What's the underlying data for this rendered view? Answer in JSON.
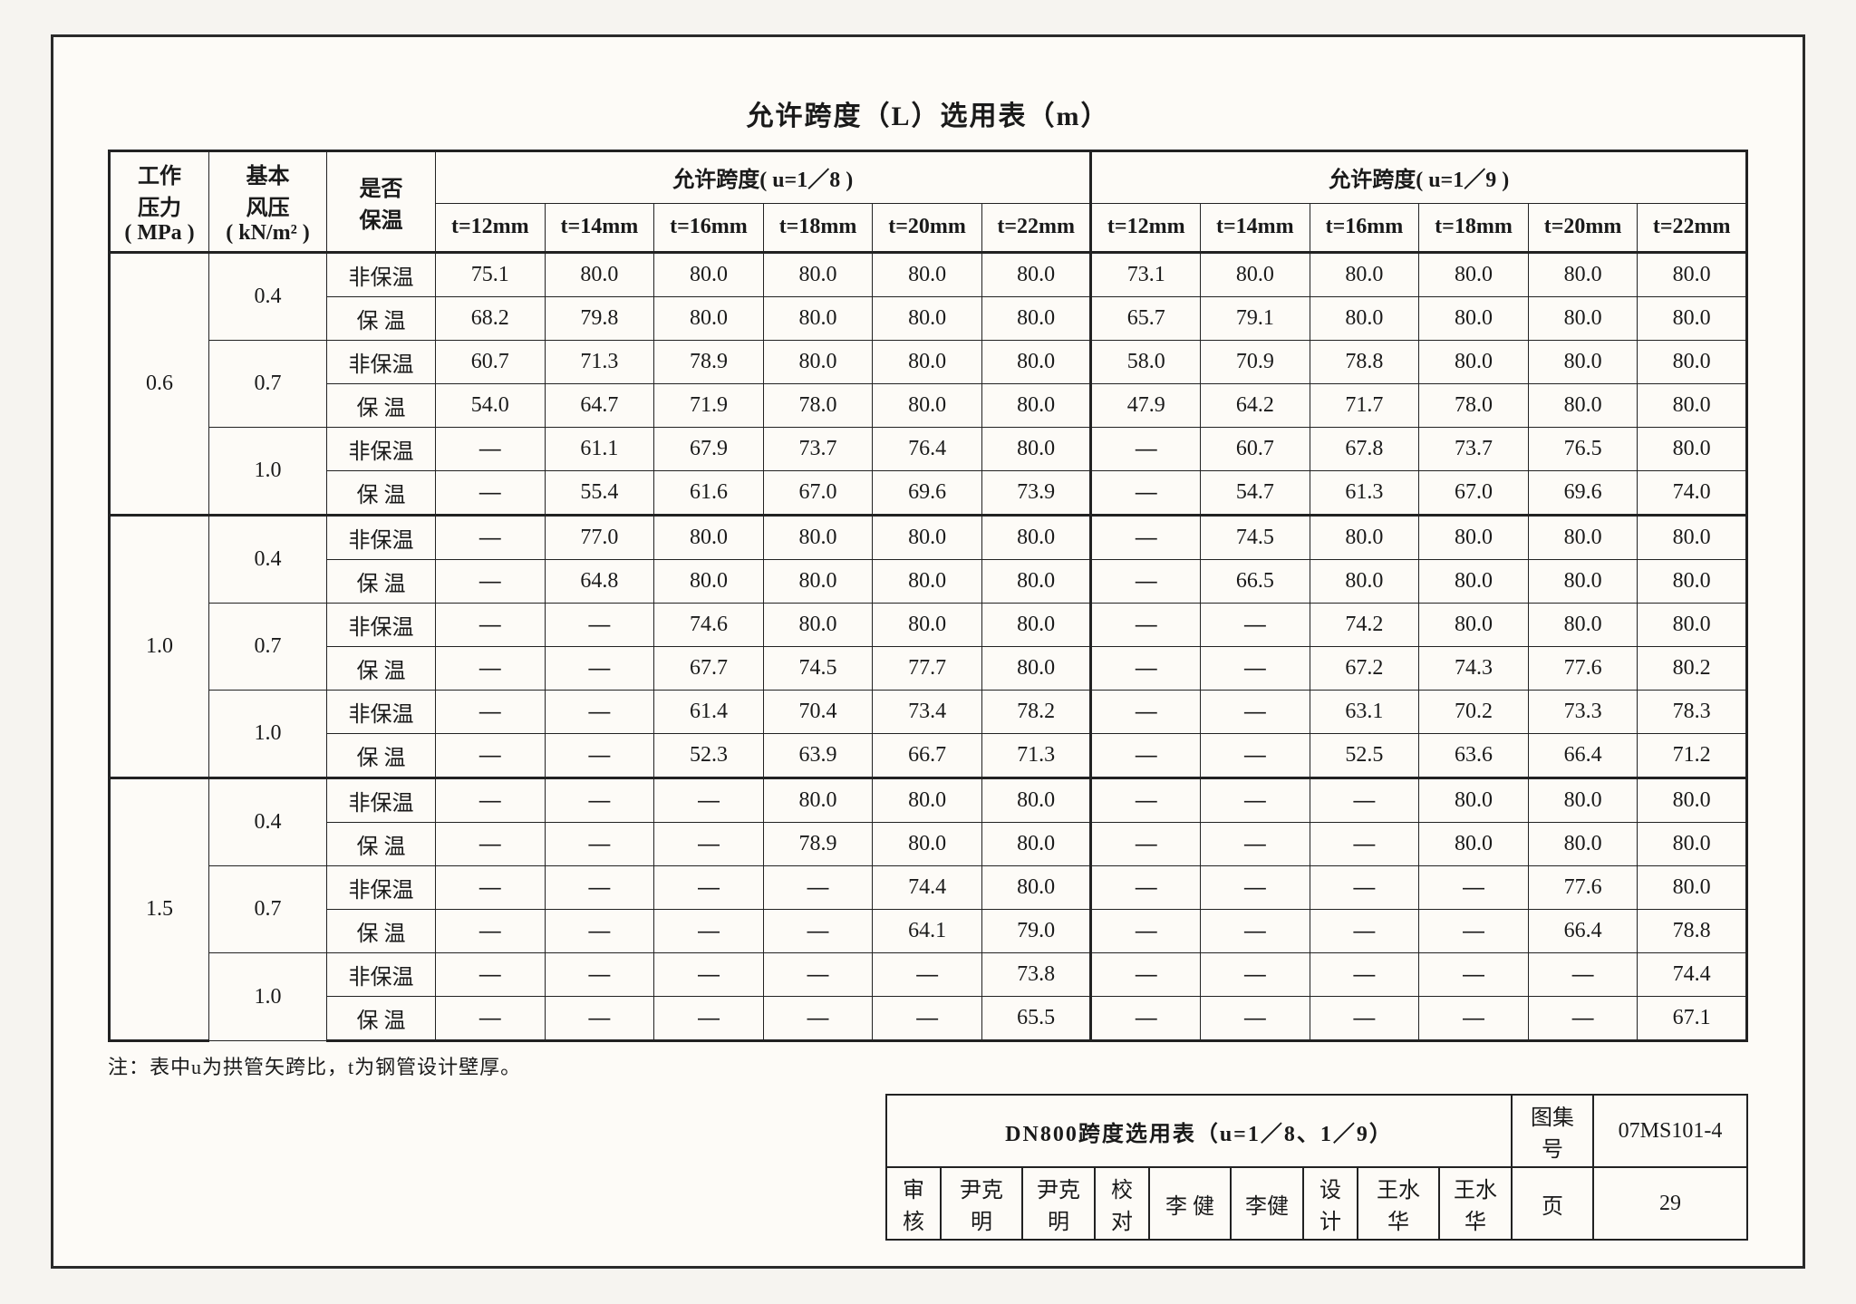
{
  "title": "允许跨度（L）选用表（m）",
  "note": "注：表中u为拱管矢跨比，t为钢管设计壁厚。",
  "headers": {
    "mpa_l1": "工作",
    "mpa_l2": "压力",
    "mpa_l3": "( MPa )",
    "wind_l1": "基本",
    "wind_l2": "风压",
    "wind_l3": "( kN/m² )",
    "ins_l1": "是否",
    "ins_l2": "保温",
    "span18": "允许跨度( u=1／8 )",
    "span19": "允许跨度( u=1／9 )",
    "tcols": [
      "t=12mm",
      "t=14mm",
      "t=16mm",
      "t=18mm",
      "t=20mm",
      "t=22mm"
    ]
  },
  "insulation": {
    "no": "非保温",
    "yes": "保 温"
  },
  "groups": [
    {
      "mpa": "0.6",
      "winds": [
        {
          "w": "0.4",
          "rows": [
            [
              "75.1",
              "80.0",
              "80.0",
              "80.0",
              "80.0",
              "80.0",
              "73.1",
              "80.0",
              "80.0",
              "80.0",
              "80.0",
              "80.0"
            ],
            [
              "68.2",
              "79.8",
              "80.0",
              "80.0",
              "80.0",
              "80.0",
              "65.7",
              "79.1",
              "80.0",
              "80.0",
              "80.0",
              "80.0"
            ]
          ]
        },
        {
          "w": "0.7",
          "rows": [
            [
              "60.7",
              "71.3",
              "78.9",
              "80.0",
              "80.0",
              "80.0",
              "58.0",
              "70.9",
              "78.8",
              "80.0",
              "80.0",
              "80.0"
            ],
            [
              "54.0",
              "64.7",
              "71.9",
              "78.0",
              "80.0",
              "80.0",
              "47.9",
              "64.2",
              "71.7",
              "78.0",
              "80.0",
              "80.0"
            ]
          ]
        },
        {
          "w": "1.0",
          "rows": [
            [
              "—",
              "61.1",
              "67.9",
              "73.7",
              "76.4",
              "80.0",
              "—",
              "60.7",
              "67.8",
              "73.7",
              "76.5",
              "80.0"
            ],
            [
              "—",
              "55.4",
              "61.6",
              "67.0",
              "69.6",
              "73.9",
              "—",
              "54.7",
              "61.3",
              "67.0",
              "69.6",
              "74.0"
            ]
          ]
        }
      ]
    },
    {
      "mpa": "1.0",
      "winds": [
        {
          "w": "0.4",
          "rows": [
            [
              "—",
              "77.0",
              "80.0",
              "80.0",
              "80.0",
              "80.0",
              "—",
              "74.5",
              "80.0",
              "80.0",
              "80.0",
              "80.0"
            ],
            [
              "—",
              "64.8",
              "80.0",
              "80.0",
              "80.0",
              "80.0",
              "—",
              "66.5",
              "80.0",
              "80.0",
              "80.0",
              "80.0"
            ]
          ]
        },
        {
          "w": "0.7",
          "rows": [
            [
              "—",
              "—",
              "74.6",
              "80.0",
              "80.0",
              "80.0",
              "—",
              "—",
              "74.2",
              "80.0",
              "80.0",
              "80.0"
            ],
            [
              "—",
              "—",
              "67.7",
              "74.5",
              "77.7",
              "80.0",
              "—",
              "—",
              "67.2",
              "74.3",
              "77.6",
              "80.2"
            ]
          ]
        },
        {
          "w": "1.0",
          "rows": [
            [
              "—",
              "—",
              "61.4",
              "70.4",
              "73.4",
              "78.2",
              "—",
              "—",
              "63.1",
              "70.2",
              "73.3",
              "78.3"
            ],
            [
              "—",
              "—",
              "52.3",
              "63.9",
              "66.7",
              "71.3",
              "—",
              "—",
              "52.5",
              "63.6",
              "66.4",
              "71.2"
            ]
          ]
        }
      ]
    },
    {
      "mpa": "1.5",
      "winds": [
        {
          "w": "0.4",
          "rows": [
            [
              "—",
              "—",
              "—",
              "80.0",
              "80.0",
              "80.0",
              "—",
              "—",
              "—",
              "80.0",
              "80.0",
              "80.0"
            ],
            [
              "—",
              "—",
              "—",
              "78.9",
              "80.0",
              "80.0",
              "—",
              "—",
              "—",
              "80.0",
              "80.0",
              "80.0"
            ]
          ]
        },
        {
          "w": "0.7",
          "rows": [
            [
              "—",
              "—",
              "—",
              "—",
              "74.4",
              "80.0",
              "—",
              "—",
              "—",
              "—",
              "77.6",
              "80.0"
            ],
            [
              "—",
              "—",
              "—",
              "—",
              "64.1",
              "79.0",
              "—",
              "—",
              "—",
              "—",
              "66.4",
              "78.8"
            ]
          ]
        },
        {
          "w": "1.0",
          "rows": [
            [
              "—",
              "—",
              "—",
              "—",
              "—",
              "73.8",
              "—",
              "—",
              "—",
              "—",
              "—",
              "74.4"
            ],
            [
              "—",
              "—",
              "—",
              "—",
              "—",
              "65.5",
              "—",
              "—",
              "—",
              "—",
              "—",
              "67.1"
            ]
          ]
        }
      ]
    }
  ],
  "titleblock": {
    "drawing_title": "DN800跨度选用表（u=1／8、1／9）",
    "set_label": "图集号",
    "set_no": "07MS101-4",
    "page_label": "页",
    "page_no": "29",
    "review_lbl": "审核",
    "review_name": "尹克明",
    "review_sig": "尹克明",
    "check_lbl": "校对",
    "check_name": "李 健",
    "check_sig": "李健",
    "design_lbl": "设计",
    "design_name": "王水华",
    "design_sig": "王水华"
  }
}
